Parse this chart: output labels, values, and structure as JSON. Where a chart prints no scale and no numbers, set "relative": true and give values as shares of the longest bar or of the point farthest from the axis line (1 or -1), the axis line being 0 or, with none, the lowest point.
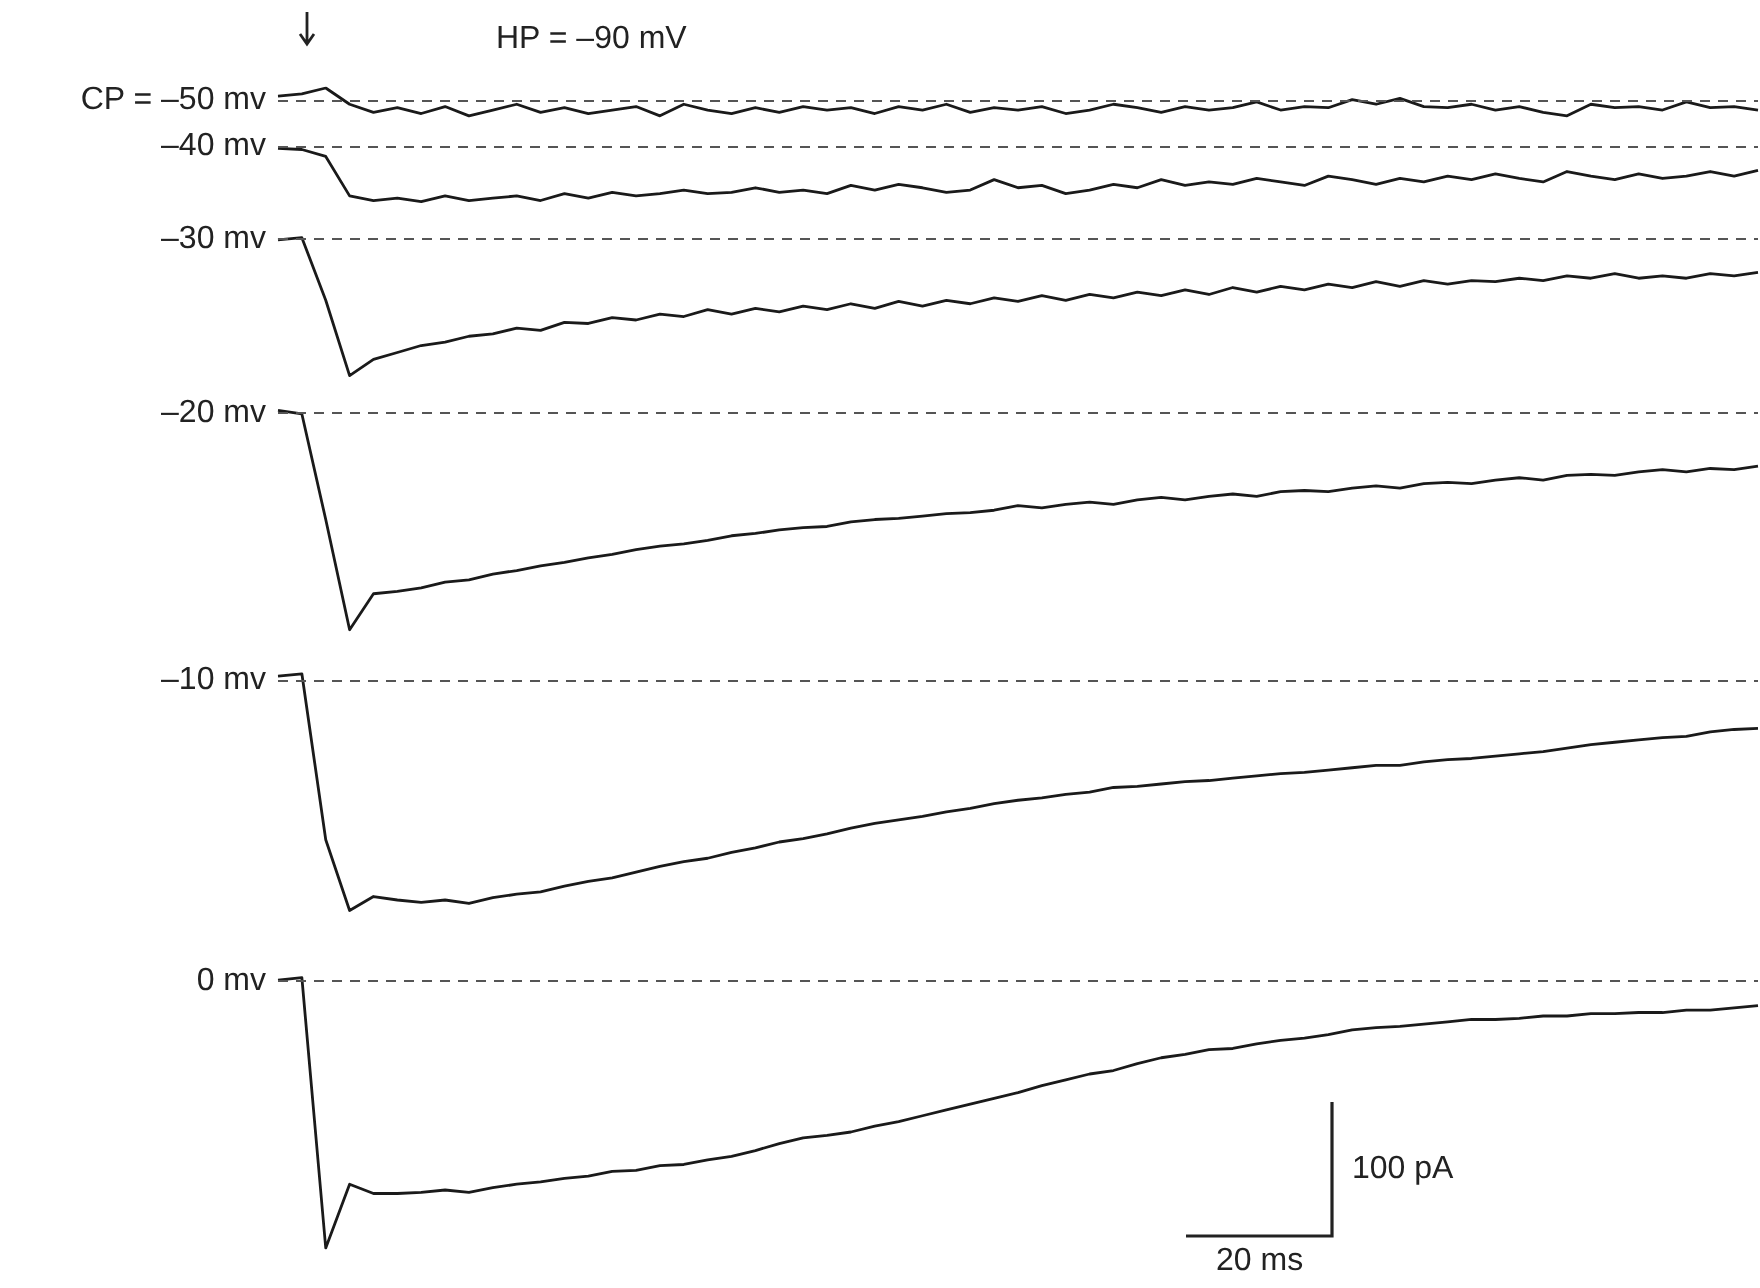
{
  "chart_data": {
    "type": "line",
    "relative": true,
    "marker": "none",
    "categories": [
      null,
      null,
      null,
      null,
      null,
      null,
      null,
      null,
      null,
      null,
      null,
      null,
      null,
      null,
      null,
      null,
      null,
      null,
      null,
      null,
      null,
      null,
      null,
      null,
      null,
      null,
      null,
      null,
      null,
      null,
      null,
      null,
      null,
      null,
      null,
      null,
      null,
      null,
      null,
      null,
      null,
      null,
      null,
      null,
      null,
      null,
      null,
      null,
      null,
      null,
      null,
      null,
      null,
      null,
      null,
      null,
      null,
      null,
      null,
      null,
      null,
      null,
      null
    ],
    "series": [
      {
        "color": "#1a1a1a",
        "values": [
          0.993,
          0.995,
          1,
          0.986,
          0.979,
          0.983,
          0.978,
          0.984,
          0.976,
          0.981,
          0.986,
          0.979,
          0.983,
          0.978,
          0.981,
          0.984,
          0.976,
          0.986,
          0.981,
          0.978,
          0.983,
          0.979,
          0.984,
          0.981,
          0.983,
          0.978,
          0.984,
          0.981,
          0.986,
          0.979,
          0.983,
          0.981,
          0.984,
          0.978,
          0.981,
          0.986,
          0.983,
          0.979,
          0.984,
          0.981,
          0.983,
          0.988,
          0.981,
          0.984,
          0.983,
          0.99,
          0.986,
          0.991,
          0.984,
          0.983,
          0.986,
          0.981,
          0.984,
          0.979,
          0.976,
          0.986,
          0.983,
          0.984,
          0.981,
          0.988,
          0.983,
          0.984,
          0.981
        ]
      },
      {
        "color": "#1a1a1a",
        "values": [
          0.948,
          0.947,
          0.941,
          0.907,
          0.903,
          0.905,
          0.902,
          0.907,
          0.903,
          0.905,
          0.907,
          0.903,
          0.909,
          0.905,
          0.91,
          0.907,
          0.909,
          0.912,
          0.909,
          0.91,
          0.914,
          0.91,
          0.912,
          0.909,
          0.916,
          0.912,
          0.917,
          0.914,
          0.91,
          0.912,
          0.921,
          0.914,
          0.916,
          0.909,
          0.912,
          0.917,
          0.914,
          0.921,
          0.916,
          0.919,
          0.917,
          0.922,
          0.919,
          0.916,
          0.924,
          0.921,
          0.917,
          0.922,
          0.919,
          0.924,
          0.921,
          0.926,
          0.922,
          0.919,
          0.928,
          0.924,
          0.921,
          0.926,
          0.922,
          0.924,
          0.928,
          0.924,
          0.929
        ]
      },
      {
        "color": "#1a1a1a",
        "values": [
          0.869,
          0.871,
          0.817,
          0.752,
          0.766,
          0.772,
          0.778,
          0.781,
          0.786,
          0.788,
          0.793,
          0.791,
          0.798,
          0.797,
          0.802,
          0.8,
          0.805,
          0.803,
          0.809,
          0.805,
          0.81,
          0.807,
          0.812,
          0.809,
          0.814,
          0.81,
          0.816,
          0.812,
          0.817,
          0.814,
          0.819,
          0.816,
          0.821,
          0.817,
          0.822,
          0.819,
          0.824,
          0.821,
          0.826,
          0.822,
          0.828,
          0.824,
          0.829,
          0.826,
          0.831,
          0.828,
          0.833,
          0.829,
          0.834,
          0.831,
          0.834,
          0.833,
          0.836,
          0.834,
          0.838,
          0.836,
          0.84,
          0.836,
          0.838,
          0.836,
          0.84,
          0.838,
          0.841
        ]
      },
      {
        "color": "#1a1a1a",
        "values": [
          0.722,
          0.719,
          0.628,
          0.533,
          0.564,
          0.566,
          0.569,
          0.574,
          0.576,
          0.581,
          0.584,
          0.588,
          0.591,
          0.595,
          0.598,
          0.602,
          0.605,
          0.607,
          0.61,
          0.614,
          0.616,
          0.619,
          0.621,
          0.622,
          0.626,
          0.628,
          0.629,
          0.631,
          0.633,
          0.634,
          0.636,
          0.64,
          0.638,
          0.641,
          0.643,
          0.641,
          0.645,
          0.647,
          0.645,
          0.648,
          0.65,
          0.648,
          0.652,
          0.653,
          0.652,
          0.655,
          0.657,
          0.655,
          0.659,
          0.66,
          0.659,
          0.662,
          0.664,
          0.662,
          0.666,
          0.667,
          0.666,
          0.669,
          0.671,
          0.669,
          0.672,
          0.671,
          0.674
        ]
      },
      {
        "color": "#1a1a1a",
        "values": [
          0.493,
          0.495,
          0.352,
          0.291,
          0.303,
          0.3,
          0.298,
          0.3,
          0.297,
          0.302,
          0.305,
          0.307,
          0.312,
          0.316,
          0.319,
          0.324,
          0.329,
          0.333,
          0.336,
          0.341,
          0.345,
          0.35,
          0.353,
          0.357,
          0.362,
          0.366,
          0.369,
          0.372,
          0.376,
          0.379,
          0.383,
          0.386,
          0.388,
          0.391,
          0.393,
          0.397,
          0.398,
          0.4,
          0.402,
          0.403,
          0.405,
          0.407,
          0.409,
          0.41,
          0.412,
          0.414,
          0.416,
          0.416,
          0.419,
          0.421,
          0.422,
          0.424,
          0.426,
          0.428,
          0.431,
          0.434,
          0.436,
          0.438,
          0.44,
          0.441,
          0.445,
          0.447,
          0.448
        ]
      },
      {
        "color": "#1a1a1a",
        "values": [
          0.231,
          0.233,
          0,
          0.055,
          0.047,
          0.047,
          0.048,
          0.05,
          0.048,
          0.052,
          0.055,
          0.057,
          0.06,
          0.062,
          0.066,
          0.067,
          0.071,
          0.072,
          0.076,
          0.079,
          0.084,
          0.09,
          0.095,
          0.097,
          0.1,
          0.105,
          0.109,
          0.114,
          0.119,
          0.124,
          0.129,
          0.134,
          0.14,
          0.145,
          0.15,
          0.153,
          0.159,
          0.164,
          0.167,
          0.171,
          0.172,
          0.176,
          0.179,
          0.181,
          0.184,
          0.188,
          0.19,
          0.191,
          0.193,
          0.195,
          0.197,
          0.197,
          0.198,
          0.2,
          0.2,
          0.202,
          0.202,
          0.203,
          0.203,
          0.205,
          0.205,
          0.207,
          0.209
        ]
      }
    ],
    "ref_lines": [
      {
        "axis": "y",
        "value": 0.99,
        "label": "CP = –50 mv",
        "color": "#555555",
        "line_style": "dashed"
      },
      {
        "axis": "y",
        "value": 0.947,
        "label": "–40 mv",
        "color": "#555555",
        "line_style": "dashed"
      },
      {
        "axis": "y",
        "value": 0.867,
        "label": "–30 mv",
        "color": "#555555",
        "line_style": "dashed"
      },
      {
        "axis": "y",
        "value": 0.721,
        "label": "–20 mv",
        "color": "#555555",
        "line_style": "dashed"
      },
      {
        "axis": "y",
        "value": 0.491,
        "label": "–10 mv",
        "color": "#555555",
        "line_style": "dashed"
      },
      {
        "axis": "y",
        "value": 0.233,
        "label": "0 mv",
        "color": "#555555",
        "line_style": "dashed"
      }
    ],
    "annotations": [
      "HP = –90 mV",
      "100 pA",
      "20 ms"
    ]
  }
}
